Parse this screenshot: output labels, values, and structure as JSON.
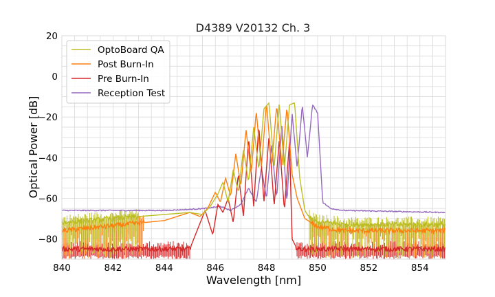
{
  "chart_data": {
    "type": "line",
    "title": "D4389 V20132 Ch. 3",
    "xlabel": "Wavelength [nm]",
    "ylabel": "Optical Power [dB]",
    "xlim": [
      840,
      855
    ],
    "ylim": [
      -90,
      20
    ],
    "xticks": [
      840,
      842,
      844,
      846,
      848,
      850,
      852,
      854
    ],
    "yticks": [
      20,
      0,
      -20,
      -40,
      -60,
      -80
    ],
    "xtick_labels": [
      "840",
      "842",
      "844",
      "846",
      "848",
      "850",
      "852",
      "854"
    ],
    "ytick_labels": [
      "20",
      "0",
      "−20",
      "−40",
      "−60",
      "−80"
    ],
    "grid": true,
    "legend": "top-left",
    "series": [
      {
        "name": "OptoBoard QA",
        "color": "#bcbd22",
        "noise_floor_db": -73,
        "x": [
          840,
          844,
          845,
          845.5,
          845.8,
          846.1,
          846.3,
          846.5,
          846.7,
          846.9,
          847.1,
          847.3,
          847.5,
          847.7,
          847.9,
          848.1,
          848.3,
          848.5,
          848.7,
          848.9,
          849.1,
          849.3,
          849.5,
          849.7,
          850,
          850.5,
          851,
          855
        ],
        "y": [
          -72,
          -68,
          -67,
          -68,
          -64,
          -58,
          -52,
          -62,
          -46,
          -57,
          -36,
          -52,
          -25,
          -46,
          -16,
          -13,
          -45,
          -13,
          -46,
          -14,
          -13,
          -50,
          -66,
          -70,
          -72,
          -72,
          -73,
          -73
        ]
      },
      {
        "name": "Post Burn-In",
        "color": "#ff7f0e",
        "noise_floor_db": -76,
        "x": [
          840,
          844,
          845,
          845.4,
          845.7,
          846,
          846.2,
          846.4,
          846.6,
          846.8,
          847,
          847.2,
          847.4,
          847.6,
          847.8,
          848,
          848.2,
          848.4,
          848.6,
          848.8,
          849,
          849.2,
          849.5,
          850,
          851,
          855
        ],
        "y": [
          -76,
          -71,
          -67,
          -69,
          -65,
          -57,
          -62,
          -50,
          -59,
          -38,
          -54,
          -26,
          -48,
          -17,
          -45,
          -13,
          -44,
          -14,
          -44,
          -15,
          -48,
          -60,
          -70,
          -74,
          -76,
          -76
        ]
      },
      {
        "name": "Pre Burn-In",
        "color": "#d62728",
        "noise_floor_db": -88,
        "x": [
          840,
          845,
          845.6,
          845.9,
          846.1,
          846.3,
          846.5,
          846.7,
          846.9,
          847.1,
          847.3,
          847.5,
          847.7,
          847.9,
          848.1,
          848.3,
          848.5,
          848.7,
          848.9,
          849,
          849.2,
          850,
          855
        ],
        "y": [
          -85,
          -85,
          -66,
          -78,
          -63,
          -67,
          -60,
          -72,
          -48,
          -69,
          -30,
          -64,
          -24,
          -62,
          -29,
          -64,
          -31,
          -66,
          -32,
          -80,
          -85,
          -85,
          -85
        ]
      },
      {
        "name": "Reception Test",
        "color": "#9467bd",
        "x": [
          840,
          844,
          845,
          845.6,
          846.2,
          846.6,
          847,
          847.3,
          847.6,
          847.8,
          848,
          848.2,
          848.4,
          848.6,
          848.8,
          849,
          849.2,
          849.4,
          849.6,
          849.8,
          850,
          850.2,
          850.5,
          851,
          853,
          855
        ],
        "y": [
          -66,
          -66,
          -65.5,
          -65,
          -64,
          -66,
          -63,
          -55,
          -62,
          -45,
          -60,
          -34,
          -60,
          -24,
          -62,
          -18,
          -45,
          -14,
          -40,
          -14,
          -18,
          -62,
          -65,
          -66,
          -66.5,
          -67
        ]
      }
    ]
  }
}
